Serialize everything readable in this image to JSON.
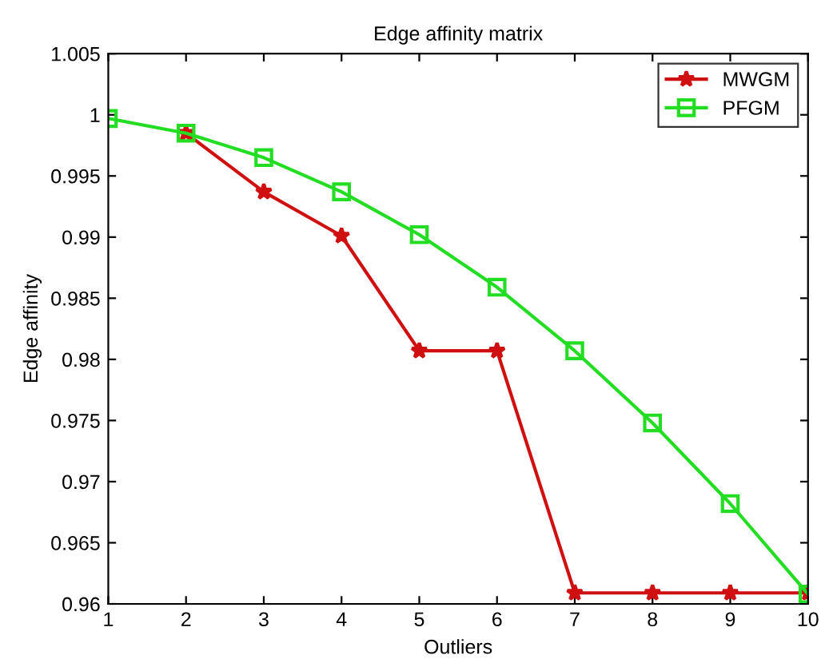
{
  "chart_data": {
    "type": "line",
    "title": "Edge affinity matrix",
    "xlabel": "Outliers",
    "ylabel": "Edge affinity",
    "x": [
      1,
      2,
      3,
      4,
      5,
      6,
      7,
      8,
      9,
      10
    ],
    "series": [
      {
        "name": "MWGM",
        "color": "#d01010",
        "marker": "star",
        "values": [
          null,
          0.9985,
          0.9937,
          0.9901,
          0.9807,
          0.9807,
          0.9609,
          0.9609,
          0.9609,
          0.9609
        ]
      },
      {
        "name": "PFGM",
        "color": "#22dd22",
        "marker": "square",
        "values": [
          0.9997,
          0.9985,
          0.9965,
          0.9937,
          0.9902,
          0.9859,
          0.9807,
          0.9748,
          0.9682,
          0.9608
        ]
      }
    ],
    "xlim": [
      1,
      10
    ],
    "xticks": [
      1,
      2,
      3,
      4,
      5,
      6,
      7,
      8,
      9,
      10
    ],
    "ylim": [
      0.96,
      1.005
    ],
    "yticks": [
      0.96,
      0.965,
      0.97,
      0.975,
      0.98,
      0.985,
      0.99,
      0.995,
      {
        "value": 1,
        "label": "1"
      },
      1.005
    ],
    "legend": "top right",
    "grid": false
  }
}
